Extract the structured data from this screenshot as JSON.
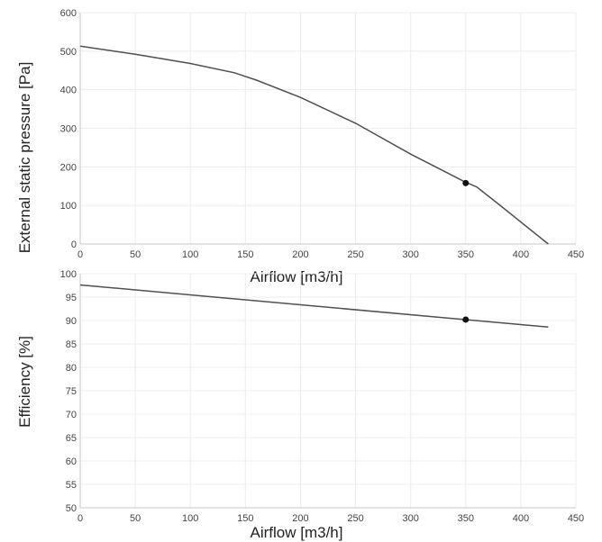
{
  "chart_data": [
    {
      "type": "line",
      "xlabel": "Airflow [m3/h]",
      "ylabel": "External static pressure [Pa]",
      "xlim": [
        0,
        450
      ],
      "ylim": [
        0,
        600
      ],
      "xticks": [
        0,
        50,
        100,
        150,
        200,
        250,
        300,
        350,
        400,
        450
      ],
      "yticks": [
        0,
        100,
        200,
        300,
        400,
        500,
        600
      ],
      "grid": true,
      "series": [
        {
          "x": [
            0,
            50,
            100,
            140,
            160,
            200,
            250,
            300,
            350,
            360,
            380,
            400,
            425
          ],
          "y": [
            513,
            492,
            468,
            444,
            425,
            380,
            313,
            233,
            160,
            148,
            103,
            57,
            0
          ]
        }
      ],
      "operating_point": {
        "x": 350,
        "y": 158
      }
    },
    {
      "type": "line",
      "xlabel": "Airflow [m3/h]",
      "ylabel": "Efficiency [%]",
      "xlim": [
        0,
        450
      ],
      "ylim": [
        50,
        100
      ],
      "xticks": [
        0,
        50,
        100,
        150,
        200,
        250,
        300,
        350,
        400,
        450
      ],
      "yticks": [
        50,
        55,
        60,
        65,
        70,
        75,
        80,
        85,
        90,
        95,
        100
      ],
      "grid": true,
      "series": [
        {
          "x": [
            0,
            425
          ],
          "y": [
            97.6,
            88.6
          ]
        }
      ],
      "operating_point": {
        "x": 350,
        "y": 90.2
      }
    }
  ]
}
